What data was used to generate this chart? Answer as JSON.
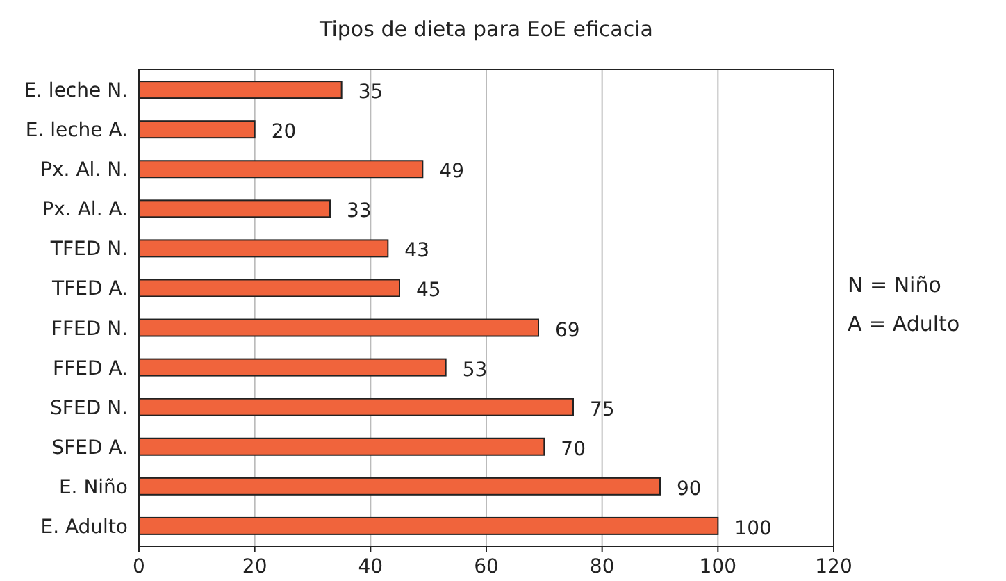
{
  "chart_data": {
    "type": "bar",
    "orientation": "horizontal",
    "title": "Tipos de dieta para EoE eficacia",
    "categories": [
      "E. leche N.",
      "E. leche A.",
      "Px. Al. N.",
      "Px. Al. A.",
      "TFED N.",
      "TFED A.",
      "FFED N.",
      "FFED A.",
      "SFED N.",
      "SFED A.",
      "E. Niño",
      "E. Adulto"
    ],
    "values": [
      35,
      20,
      49,
      33,
      43,
      45,
      69,
      53,
      75,
      70,
      90,
      100
    ],
    "color": "#f0643c",
    "xlim": [
      0,
      120
    ],
    "xticks": [
      0,
      20,
      40,
      60,
      80,
      100,
      120
    ],
    "grid": "x",
    "data_labels": true,
    "annotations": [
      "N = Niño",
      "A = Adulto"
    ]
  }
}
